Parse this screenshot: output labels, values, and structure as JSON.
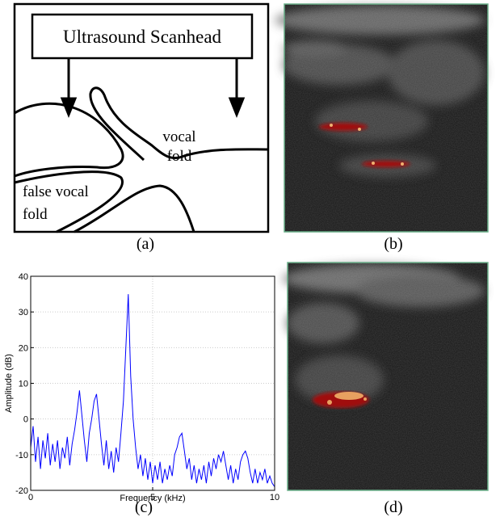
{
  "diagram": {
    "scanhead": "Ultrasound Scanhead",
    "vocal_fold": [
      "vocal",
      "fold"
    ],
    "false_vocal_fold": [
      "false vocal",
      "fold"
    ]
  },
  "captions": [
    "(a)",
    "(b)",
    "(c)",
    "(d)"
  ],
  "chart_data": {
    "type": "line",
    "x_label": "Frequency (kHz)",
    "y_label": "Amplitude (dB)",
    "xlim": [
      0,
      10
    ],
    "xticks": [
      0,
      5,
      10
    ],
    "ylim": [
      -20,
      40
    ],
    "yticks": [
      -20,
      -10,
      0,
      10,
      20,
      30,
      40
    ],
    "grid": true,
    "x": [
      0,
      0.1,
      0.2,
      0.3,
      0.4,
      0.5,
      0.6,
      0.7,
      0.8,
      0.9,
      1,
      1.1,
      1.2,
      1.3,
      1.4,
      1.5,
      1.6,
      1.7,
      1.8,
      1.9,
      2,
      2.1,
      2.2,
      2.3,
      2.4,
      2.5,
      2.6,
      2.7,
      2.8,
      2.9,
      3,
      3.1,
      3.2,
      3.3,
      3.4,
      3.5,
      3.6,
      3.7,
      3.8,
      3.9,
      4,
      4.1,
      4.2,
      4.3,
      4.4,
      4.5,
      4.6,
      4.7,
      4.8,
      4.9,
      5,
      5.1,
      5.2,
      5.3,
      5.4,
      5.5,
      5.6,
      5.7,
      5.8,
      5.9,
      6,
      6.1,
      6.2,
      6.3,
      6.4,
      6.5,
      6.6,
      6.7,
      6.8,
      6.9,
      7,
      7.1,
      7.2,
      7.3,
      7.4,
      7.5,
      7.6,
      7.7,
      7.8,
      7.9,
      8,
      8.1,
      8.2,
      8.3,
      8.4,
      8.5,
      8.6,
      8.7,
      8.8,
      8.9,
      9,
      9.1,
      9.2,
      9.3,
      9.4,
      9.5,
      9.6,
      9.7,
      9.8,
      9.9,
      10
    ],
    "series": [
      {
        "color": "#0000ff",
        "values": [
          -8,
          -2,
          -12,
          -5,
          -14,
          -6,
          -11,
          -4,
          -13,
          -7,
          -12,
          -6,
          -14,
          -8,
          -11,
          -5,
          -13,
          -7,
          -3,
          2,
          8,
          1,
          -6,
          -12,
          -4,
          0,
          5,
          7,
          0,
          -7,
          -13,
          -6,
          -14,
          -9,
          -15,
          -8,
          -12,
          -4,
          5,
          20,
          35,
          12,
          0,
          -8,
          -14,
          -10,
          -16,
          -11,
          -17,
          -12,
          -18,
          -13,
          -17,
          -12,
          -18,
          -14,
          -17,
          -13,
          -16,
          -10,
          -8,
          -5,
          -4,
          -9,
          -14,
          -11,
          -17,
          -13,
          -18,
          -14,
          -17,
          -13,
          -18,
          -12,
          -16,
          -11,
          -14,
          -10,
          -12,
          -9,
          -13,
          -17,
          -13,
          -18,
          -14,
          -17,
          -12,
          -10,
          -9,
          -11,
          -15,
          -18,
          -14,
          -18,
          -15,
          -17,
          -14,
          -18,
          -16,
          -18,
          -19
        ]
      }
    ]
  }
}
